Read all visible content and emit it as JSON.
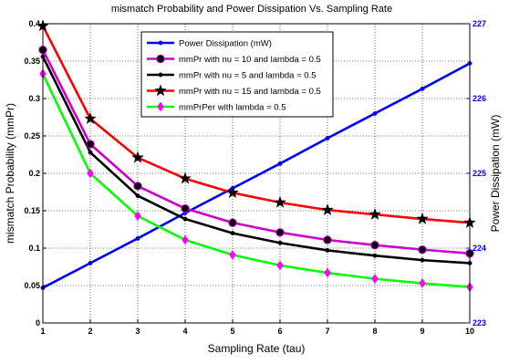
{
  "chart_data": {
    "type": "line",
    "title": "mismatch Probability and Power Dissipation Vs. Sampling Rate",
    "xlabel": "Sampling Rate (tau)",
    "ylabel": "mismatch Probability (mmPr)",
    "y2label": "Power Dissipation (mW)",
    "x": [
      1,
      2,
      3,
      4,
      5,
      6,
      7,
      8,
      9,
      10
    ],
    "xlim": [
      1,
      10
    ],
    "ylim": [
      0,
      0.4
    ],
    "y2lim": [
      223,
      227
    ],
    "xticks": [
      "1",
      "2",
      "3",
      "4",
      "5",
      "6",
      "7",
      "8",
      "9",
      "10"
    ],
    "yticks": [
      "0",
      "0.05",
      "0.1",
      "0.15",
      "0.2",
      "0.25",
      "0.3",
      "0.35",
      "0.4"
    ],
    "y2ticks": [
      "223",
      "224",
      "225",
      "226",
      "227"
    ],
    "grid": true,
    "legend_position": "top-center",
    "series": [
      {
        "name": "Power Dissipation (mW)",
        "axis": "right",
        "color": "#0000ff",
        "marker": "dot",
        "values": [
          223.47,
          223.8,
          224.13,
          224.47,
          224.8,
          225.13,
          225.47,
          225.8,
          226.13,
          226.47
        ]
      },
      {
        "name": "mmPr with nu = 10 and lambda = 0.5",
        "axis": "left",
        "color": "#cc00cc",
        "marker": "circle",
        "values": [
          0.365,
          0.239,
          0.183,
          0.153,
          0.134,
          0.121,
          0.111,
          0.104,
          0.098,
          0.093
        ]
      },
      {
        "name": "mmPr with nu = 5 and lambda = 0.5",
        "axis": "left",
        "color": "#000000",
        "marker": "dot",
        "values": [
          0.356,
          0.228,
          0.17,
          0.139,
          0.12,
          0.107,
          0.097,
          0.09,
          0.084,
          0.08
        ]
      },
      {
        "name": "mmPr with nu = 15 and lambda = 0.5",
        "axis": "left",
        "color": "#ff0000",
        "marker": "star",
        "values": [
          0.397,
          0.273,
          0.221,
          0.193,
          0.174,
          0.161,
          0.151,
          0.145,
          0.139,
          0.134
        ]
      },
      {
        "name": "mmPrPer with lambda = 0.5",
        "axis": "left",
        "color": "#00ff00",
        "marker": "diamond",
        "values": [
          0.333,
          0.2,
          0.143,
          0.111,
          0.091,
          0.077,
          0.067,
          0.059,
          0.053,
          0.048
        ]
      }
    ]
  }
}
